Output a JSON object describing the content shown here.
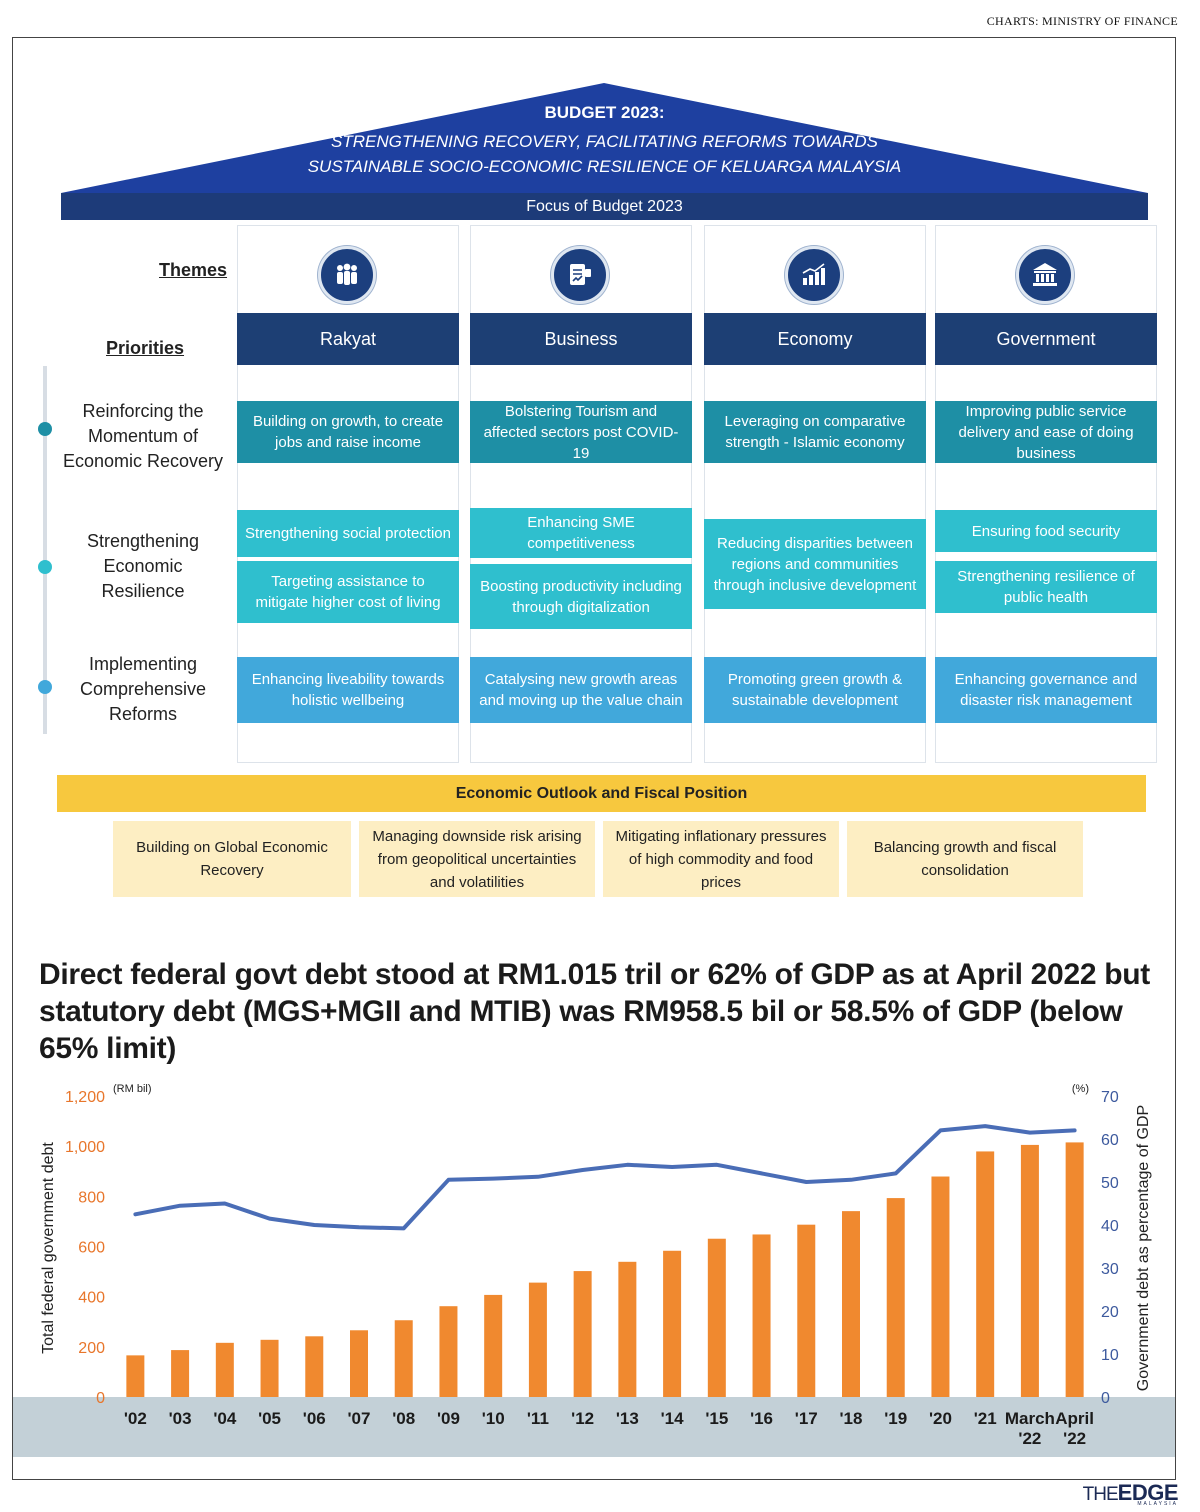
{
  "credit": "CHARTS: MINISTRY OF FINANCE",
  "roof": {
    "title": "BUDGET 2023:",
    "sub1": "STRENGTHENING RECOVERY, FACILITATING REFORMS TOWARDS",
    "sub2": "SUSTAINABLE SOCIO-ECONOMIC RESILIENCE OF KELUARGA MALAYSIA"
  },
  "focus": "Focus of Budget 2023",
  "labels": {
    "themes": "Themes",
    "priorities": "Priorities"
  },
  "rows": [
    {
      "label1": "Reinforcing the",
      "label2": "Momentum of",
      "label3": "Economic Recovery"
    },
    {
      "label1": "Strengthening",
      "label2": "Economic",
      "label3": "Resilience"
    },
    {
      "label1": "Implementing",
      "label2": "Comprehensive",
      "label3": "Reforms"
    }
  ],
  "icons": [
    "people-icon",
    "business-icon",
    "bar-chart-icon",
    "government-building-icon"
  ],
  "themes": [
    {
      "name": "Rakyat",
      "r1": "Building on growth, to create jobs and raise income",
      "r2a": "Strengthening social protection",
      "r2b": "Targeting  assistance to mitigate higher cost of living",
      "r3": "Enhancing liveability towards holistic wellbeing"
    },
    {
      "name": "Business",
      "r1": "Bolstering Tourism and affected sectors post COVID-19",
      "r2a": "Enhancing SME competitiveness",
      "r2b": "Boosting productivity including through digitalization",
      "r3": "Catalysing new growth areas and moving up the value chain"
    },
    {
      "name": "Economy",
      "r1": "Leveraging on comparative strength - Islamic economy",
      "r2": "Reducing disparities between regions and communities through inclusive development",
      "r3": "Promoting green growth & sustainable development"
    },
    {
      "name": "Government",
      "r1": "Improving public service delivery and ease of doing business",
      "r2a": "Ensuring food security",
      "r2b": "Strengthening resilience of public health",
      "r3": "Enhancing governance and disaster risk management"
    }
  ],
  "outlook": {
    "title": "Economic Outlook and Fiscal Position",
    "items": [
      "Building on Global Economic Recovery",
      "Managing downside risk arising from geopolitical uncertainties and volatilities",
      "Mitigating inflationary pressures of high commodity and food prices",
      "Balancing growth and fiscal consolidation"
    ]
  },
  "headline": "Direct federal govt debt stood at RM1.015 tril or 62% of GDP as at April 2022 but statutory debt (MGS+MGII and MTIB) was RM958.5 bil or 58.5% of GDP (below 65% limit)",
  "chart_data": {
    "type": "bar",
    "categories": [
      "'02",
      "'03",
      "'04",
      "'05",
      "'06",
      "'07",
      "'08",
      "'09",
      "'10",
      "'11",
      "'12",
      "'13",
      "'14",
      "'15",
      "'16",
      "'17",
      "'18",
      "'19",
      "'20",
      "'21",
      "March '22",
      "April '22"
    ],
    "category_lines": [
      [
        "'02"
      ],
      [
        "'03"
      ],
      [
        "'04"
      ],
      [
        "'05"
      ],
      [
        "'06"
      ],
      [
        "'07"
      ],
      [
        "'08"
      ],
      [
        "'09"
      ],
      [
        "'10"
      ],
      [
        "'11"
      ],
      [
        "'12"
      ],
      [
        "'13"
      ],
      [
        "'14"
      ],
      [
        "'15"
      ],
      [
        "'16"
      ],
      [
        "'17"
      ],
      [
        "'18"
      ],
      [
        "'19"
      ],
      [
        "'20"
      ],
      [
        "'21"
      ],
      [
        "March",
        "'22"
      ],
      [
        "April",
        "'22"
      ]
    ],
    "series": [
      {
        "type": "bar",
        "axis": "left",
        "color": "#f0892f",
        "values": [
          166,
          187,
          216,
          228,
          242,
          266,
          306,
          362,
          407,
          456,
          502,
          539,
          583,
          631,
          648,
          687,
          741,
          793,
          879,
          979,
          1005,
          1015
        ]
      },
      {
        "type": "line",
        "axis": "right",
        "color": "#4a6db6",
        "values": [
          42.5,
          44.5,
          45,
          41.5,
          40,
          39.5,
          39.2,
          50.5,
          50.8,
          51.2,
          52.8,
          54,
          53.5,
          54,
          52,
          50,
          50.5,
          52,
          62,
          63,
          61.5,
          62
        ]
      }
    ],
    "y_left": {
      "label": "Total federal government debt",
      "unit": "(RM bil)",
      "ylim": [
        0,
        1200
      ],
      "ticks": [
        "0",
        "200",
        "400",
        "600",
        "800",
        "1,000",
        "1,200"
      ],
      "color": "#e8762b"
    },
    "y_right": {
      "label": "Government debt as percentage of GDP",
      "unit": "(%)",
      "ylim": [
        0,
        70
      ],
      "ticks": [
        "0",
        "10",
        "20",
        "30",
        "40",
        "50",
        "60",
        "70"
      ],
      "color": "#3d5a9e"
    },
    "grid": false
  }
}
